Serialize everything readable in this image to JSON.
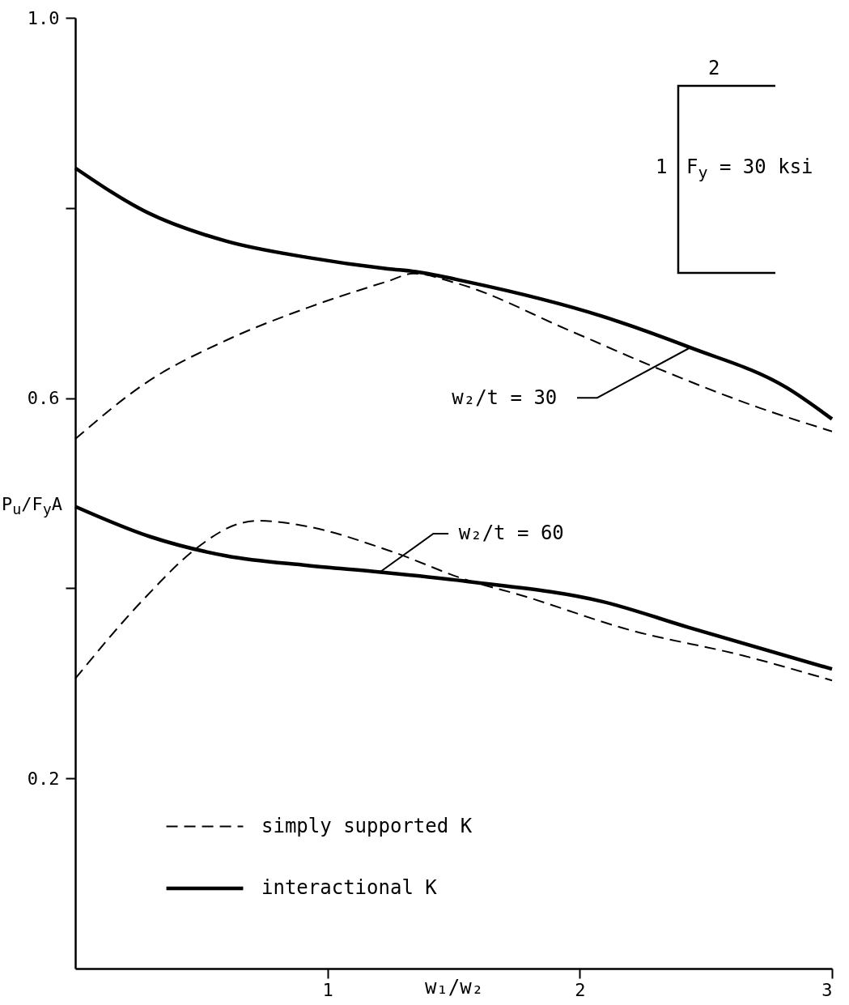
{
  "chart_data": {
    "type": "line",
    "xlabel": "w₁/w₂",
    "ylabel": "P$_{u}$/F$_{y}$A",
    "xlim": [
      0,
      3
    ],
    "xticks": [
      1,
      2,
      3
    ],
    "ylim": [
      0,
      1.0
    ],
    "yticks": [
      {
        "value": 1.0,
        "label": "1.0"
      },
      {
        "value": 0.8,
        "label": null
      },
      {
        "value": 0.6,
        "label": "0.6"
      },
      {
        "value": 0.4,
        "label": null
      },
      {
        "value": 0.2,
        "label": "0.2"
      }
    ],
    "grid": false,
    "legend": "bottom left",
    "marker": "none",
    "series": [
      {
        "name": "simply supported K",
        "color": "#000000",
        "line_style": "dashed",
        "x": [
          0,
          0.28,
          0.6,
          0.92,
          1.24,
          1.34,
          1.51,
          1.96,
          2.32,
          2.71,
          3.0
        ],
        "values": [
          0.557,
          0.616,
          0.661,
          0.695,
          0.723,
          0.731,
          0.721,
          0.671,
          0.63,
          0.59,
          0.565
        ]
      },
      {
        "name": "interactional K",
        "color": "#000000",
        "line_style": "solid",
        "x": [
          0,
          0.28,
          0.6,
          0.92,
          1.24,
          1.35,
          1.56,
          2.09,
          2.44,
          2.82,
          3.0
        ],
        "values": [
          0.842,
          0.796,
          0.765,
          0.748,
          0.736,
          0.733,
          0.722,
          0.686,
          0.653,
          0.611,
          0.578
        ]
      },
      {
        "color": "#000000",
        "line_style": "dashed",
        "x": [
          0,
          0.28,
          0.48,
          0.65,
          0.73,
          0.92,
          1.24,
          1.56,
          1.75,
          2.2,
          2.65,
          3.0
        ],
        "values": [
          0.305,
          0.391,
          0.442,
          0.468,
          0.471,
          0.465,
          0.44,
          0.408,
          0.394,
          0.356,
          0.329,
          0.303
        ]
      },
      {
        "color": "#000000",
        "line_style": "solid",
        "x": [
          0,
          0.3,
          0.6,
          0.92,
          1.21,
          1.56,
          2.09,
          2.43,
          3.0
        ],
        "values": [
          0.486,
          0.454,
          0.434,
          0.424,
          0.417,
          0.407,
          0.386,
          0.359,
          0.315
        ]
      }
    ],
    "annotations": [
      "2",
      "1",
      "F$_{y}$ = 30 ksi",
      {
        "text": "w₂/t = 30",
        "x": 2.44,
        "y": 0.653
      },
      {
        "text": "w₂/t = 60",
        "x": 1.21,
        "y": 0.417
      }
    ]
  }
}
